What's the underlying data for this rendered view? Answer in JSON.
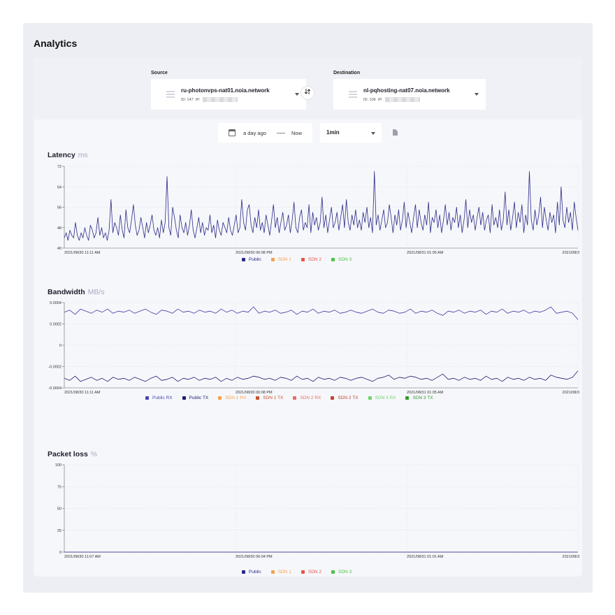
{
  "page": {
    "title": "Analytics"
  },
  "source": {
    "label": "Source",
    "name": "ru-photonvps-nat01.noia.network",
    "id_text": "ID: 147",
    "ip_label": "IP:"
  },
  "destination": {
    "label": "Destination",
    "name": "nl-pqhosting-nat07.noia.network",
    "id_text": "ID: 106",
    "ip_label": "IP:"
  },
  "swap_icon": "swap-icon",
  "time_range": {
    "from": "a day ago",
    "to": "Now"
  },
  "interval": {
    "selected": "1min"
  },
  "colors": {
    "public": "#2b2a86",
    "public_rx": "#4748b0",
    "sdn1": "#f5a04d",
    "sdn1_tx": "#c8512d",
    "sdn2": "#e3564d",
    "sdn2_rx": "#e46e62",
    "sdn2_tx": "#c0462c",
    "sdn3": "#4cc444",
    "sdn3_rx": "#6fd26a",
    "sdn3_tx": "#2f9a2c",
    "grid": "#dcdde6"
  },
  "latency": {
    "title": "Latency",
    "unit": "ms",
    "legend": [
      {
        "label": "Public",
        "color": "#2b2a86"
      },
      {
        "label": "SDN 1",
        "color": "#f5a04d"
      },
      {
        "label": "SDN 2",
        "color": "#e3564d"
      },
      {
        "label": "SDN 3",
        "color": "#4cc444"
      }
    ]
  },
  "bandwidth": {
    "title": "Bandwidth",
    "unit": "MB/s",
    "legend": [
      {
        "label": "Public RX",
        "color": "#4748b0"
      },
      {
        "label": "Public TX",
        "color": "#1e1d6e"
      },
      {
        "label": "SDN 1 RX",
        "color": "#f5a04d"
      },
      {
        "label": "SDN 1 TX",
        "color": "#c8512d"
      },
      {
        "label": "SDN 2 RX",
        "color": "#e46e62"
      },
      {
        "label": "SDN 2 TX",
        "color": "#c0462c"
      },
      {
        "label": "SDN 3 RX",
        "color": "#6fd26a"
      },
      {
        "label": "SDN 3 TX",
        "color": "#2f9a2c"
      }
    ]
  },
  "packet_loss": {
    "title": "Packet loss",
    "unit": "%",
    "legend": [
      {
        "label": "Public",
        "color": "#2b2a86"
      },
      {
        "label": "SDN 1",
        "color": "#f5a04d"
      },
      {
        "label": "SDN 2",
        "color": "#e3564d"
      },
      {
        "label": "SDN 3",
        "color": "#4cc444"
      }
    ]
  },
  "chart_data": [
    {
      "type": "line",
      "title": "Latency",
      "ylabel": "ms",
      "ylim": [
        40,
        72
      ],
      "yticks": [
        "72",
        "64",
        "56",
        "48",
        "40"
      ],
      "xticks": [
        "2021/08/30 11:11 AM",
        "2021/08/30 06:08 PM",
        "2021/08/31 01:05 AM",
        "2021/08/3"
      ],
      "grid": true,
      "legend_position": "bottom",
      "series": [
        {
          "name": "Public",
          "values": [
            44,
            46,
            43,
            47,
            45,
            44,
            50,
            45,
            43,
            46,
            44,
            48,
            45,
            43,
            49,
            47,
            44,
            46,
            52,
            45,
            48,
            44,
            46,
            43,
            47,
            59,
            46,
            50,
            48,
            45,
            53,
            47,
            44,
            55,
            48,
            46,
            51,
            57,
            49,
            45,
            47,
            52,
            48,
            44,
            50,
            46,
            49,
            53,
            47,
            45,
            48,
            44,
            51,
            46,
            50,
            68,
            48,
            45,
            56,
            52,
            47,
            44,
            53,
            48,
            46,
            50,
            45,
            49,
            55,
            47,
            44,
            48,
            52,
            46,
            50,
            45,
            48,
            47,
            53,
            46,
            49,
            44,
            51,
            47,
            45,
            50,
            48,
            46,
            52,
            47,
            45,
            49,
            53,
            46,
            48,
            59,
            50,
            47,
            55,
            57,
            49,
            46,
            52,
            48,
            55,
            47,
            50,
            46,
            53,
            49,
            45,
            51,
            57,
            48,
            52,
            46,
            50,
            54,
            47,
            49,
            53,
            46,
            51,
            58,
            48,
            46,
            52,
            55,
            47,
            50,
            48,
            57,
            46,
            54,
            49,
            52,
            47,
            50,
            60,
            48,
            53,
            46,
            51,
            56,
            48,
            50,
            54,
            47,
            52,
            57,
            48,
            59,
            50,
            47,
            53,
            49,
            55,
            48,
            51,
            47,
            54,
            50,
            56,
            48,
            52,
            46,
            70,
            49,
            53,
            47,
            51,
            55,
            48,
            50,
            57,
            52,
            46,
            53,
            49,
            55,
            47,
            51,
            58,
            48,
            54,
            50,
            46,
            52,
            57,
            48,
            55,
            50,
            47,
            53,
            49,
            58,
            46,
            52,
            50,
            55,
            48,
            53,
            46,
            51,
            57,
            49,
            54,
            47,
            52,
            50,
            56,
            48,
            53,
            46,
            51,
            59,
            48,
            55,
            50,
            53,
            47,
            52,
            56,
            49,
            54,
            47,
            51,
            53,
            46,
            57,
            49,
            52,
            48,
            55,
            47,
            51,
            62,
            49,
            55,
            47,
            52,
            58,
            48,
            54,
            50,
            57,
            46,
            53,
            49,
            70,
            51,
            47,
            55,
            49,
            53,
            60,
            48,
            56,
            51,
            47,
            54,
            50,
            53,
            46,
            58,
            49,
            64,
            51,
            48,
            56,
            50,
            54,
            47,
            58,
            52,
            47
          ]
        }
      ]
    },
    {
      "type": "line",
      "title": "Bandwidth",
      "ylabel": "MB/s",
      "ylim": [
        -0.0004,
        0.0004
      ],
      "yticks": [
        "0.0004",
        "0.0002",
        "0",
        "-0.0002",
        "-0.0004"
      ],
      "xticks": [
        "2021/08/30 11:11 AM",
        "2021/08/30 06:08 PM",
        "2021/08/31 01:05 AM",
        "2021/08/3"
      ],
      "grid": true,
      "legend_position": "bottom",
      "series": [
        {
          "name": "Public RX",
          "values": [
            0.00031,
            0.00033,
            0.00029,
            0.00034,
            0.00032,
            0.0003,
            0.00033,
            0.00031,
            0.00034,
            0.0003,
            0.00032,
            0.00031,
            0.00033,
            0.0003,
            0.00032,
            0.00034,
            0.00031,
            0.00029,
            0.00033,
            0.00032,
            0.0003,
            0.00034,
            0.00031,
            0.00032,
            0.0003,
            0.00033,
            0.00031,
            0.00032,
            0.0003,
            0.00034,
            0.00031,
            0.00033,
            0.0003,
            0.00032,
            0.00031,
            0.00036,
            0.0003,
            0.00032,
            0.00031,
            0.00033,
            0.0003,
            0.00031,
            0.00033,
            0.00029,
            0.00032,
            0.00031,
            0.00034,
            0.0003,
            0.00032,
            0.00031,
            0.00033,
            0.0003,
            0.00031,
            0.00033,
            0.00031,
            0.0003,
            0.00032,
            0.00034,
            0.00031,
            0.0003,
            0.00033,
            0.00032,
            0.0003,
            0.00031,
            0.00034,
            0.0003,
            0.00032,
            0.00031,
            0.00033,
            0.0003,
            0.00028,
            0.00032,
            0.00031,
            0.00033,
            0.0003,
            0.00032,
            0.00031,
            0.00033,
            0.00029,
            0.00032,
            0.00031,
            0.00034,
            0.0003,
            0.00032,
            0.00031,
            0.00033,
            0.0003,
            0.00032,
            0.00031,
            0.00033,
            0.00036,
            0.0003,
            0.00031,
            0.00032,
            0.0003,
            0.00024
          ]
        },
        {
          "name": "Public TX",
          "values": [
            -0.00031,
            -0.00033,
            -0.00029,
            -0.00034,
            -0.00032,
            -0.0003,
            -0.00033,
            -0.00031,
            -0.00034,
            -0.0003,
            -0.00032,
            -0.00031,
            -0.00033,
            -0.0003,
            -0.00032,
            -0.00034,
            -0.00031,
            -0.00029,
            -0.00033,
            -0.00032,
            -0.0003,
            -0.00034,
            -0.00031,
            -0.00032,
            -0.0003,
            -0.00033,
            -0.00031,
            -0.00032,
            -0.0003,
            -0.00034,
            -0.00031,
            -0.00033,
            -0.0003,
            -0.00032,
            -0.00031,
            -0.00029,
            -0.0003,
            -0.00032,
            -0.00031,
            -0.00033,
            -0.0003,
            -0.00031,
            -0.00033,
            -0.00029,
            -0.00032,
            -0.00031,
            -0.00034,
            -0.0003,
            -0.00032,
            -0.00031,
            -0.00033,
            -0.0003,
            -0.00031,
            -0.00033,
            -0.00031,
            -0.0003,
            -0.00032,
            -0.00034,
            -0.00031,
            -0.0003,
            -0.00028,
            -0.00032,
            -0.0003,
            -0.00031,
            -0.00029,
            -0.0003,
            -0.00032,
            -0.00031,
            -0.00033,
            -0.0003,
            -0.00027,
            -0.00032,
            -0.00031,
            -0.00033,
            -0.0003,
            -0.00032,
            -0.00031,
            -0.00033,
            -0.00029,
            -0.00032,
            -0.00031,
            -0.00034,
            -0.0003,
            -0.00032,
            -0.00031,
            -0.00033,
            -0.0003,
            -0.00032,
            -0.00031,
            -0.00033,
            -0.00028,
            -0.0003,
            -0.00031,
            -0.00032,
            -0.0003,
            -0.00024
          ]
        }
      ]
    },
    {
      "type": "line",
      "title": "Packet loss",
      "ylabel": "%",
      "ylim": [
        0,
        100
      ],
      "yticks": [
        "100",
        "75",
        "50",
        "25",
        "0"
      ],
      "xticks": [
        "2021/08/30 11:07 AM",
        "2021/08/30 06:04 PM",
        "2021/08/31 01:01 AM",
        "2021/08/3"
      ],
      "grid": true,
      "legend_position": "bottom",
      "series": [
        {
          "name": "Public",
          "values": [
            0,
            0,
            0,
            0,
            0,
            0,
            0,
            0,
            0,
            0,
            0,
            0,
            0,
            0,
            0,
            0,
            0,
            0,
            0,
            0
          ]
        }
      ]
    }
  ]
}
